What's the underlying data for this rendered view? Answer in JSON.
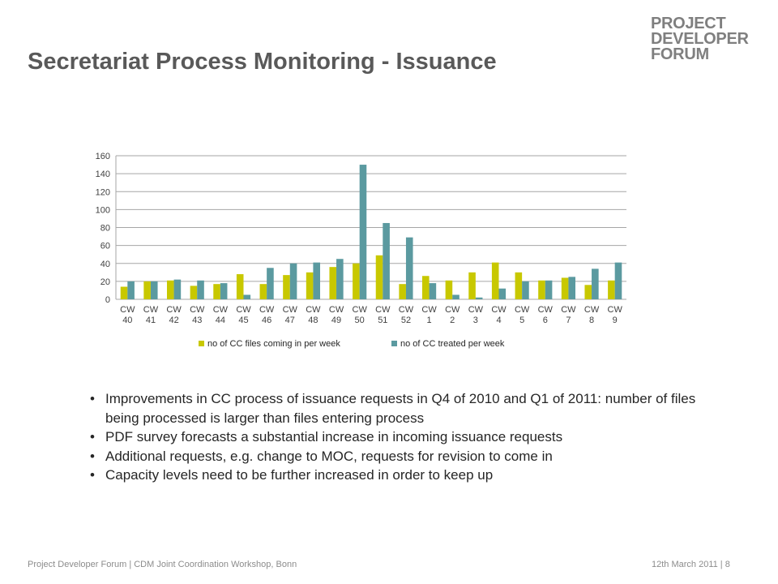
{
  "slide": {
    "title": "Secretariat Process Monitoring - Issuance",
    "logo_lines": [
      "PROJECT",
      "DEVELOPER",
      "FORUM"
    ],
    "bullets": [
      "Improvements in CC process of issuance requests in Q4 of 2010 and Q1 of 2011: number of files being processed is larger than files entering process",
      "PDF survey forecasts a substantial increase in incoming issuance requests",
      "Additional requests, e.g. change to MOC, requests for revision to come in",
      "Capacity levels need to be further increased in order to keep up"
    ],
    "bullet_glyph": "•",
    "footer_left": "Project Developer Forum | CDM Joint Coordination Workshop, Bonn",
    "footer_right": "12th March 2011 |   8"
  },
  "chart_data": {
    "type": "bar",
    "categories": [
      "CW 40",
      "CW 41",
      "CW 42",
      "CW 43",
      "CW 44",
      "CW 45",
      "CW 46",
      "CW 47",
      "CW 48",
      "CW 49",
      "CW 50",
      "CW 51",
      "CW 52",
      "CW 1",
      "CW 2",
      "CW 3",
      "CW 4",
      "CW 5",
      "CW 6",
      "CW 7",
      "CW 8",
      "CW 9"
    ],
    "series": [
      {
        "name": "no of CC files coming in per week",
        "color": "#c8c800",
        "values": [
          14,
          20,
          21,
          15,
          17,
          28,
          17,
          27,
          30,
          36,
          40,
          49,
          17,
          26,
          21,
          30,
          41,
          30,
          21,
          24,
          16,
          21
        ]
      },
      {
        "name": "no of CC treated per week",
        "color": "#5b9aa0",
        "values": [
          20,
          20,
          22,
          21,
          18,
          5,
          35,
          40,
          41,
          45,
          150,
          85,
          69,
          18,
          5,
          2,
          12,
          20,
          21,
          25,
          34,
          41
        ]
      }
    ],
    "ylim": [
      0,
      160
    ],
    "yticks": [
      0,
      20,
      40,
      60,
      80,
      100,
      120,
      140,
      160
    ],
    "grid": true,
    "legend_position": "bottom",
    "title": "",
    "xlabel": "",
    "ylabel": ""
  }
}
